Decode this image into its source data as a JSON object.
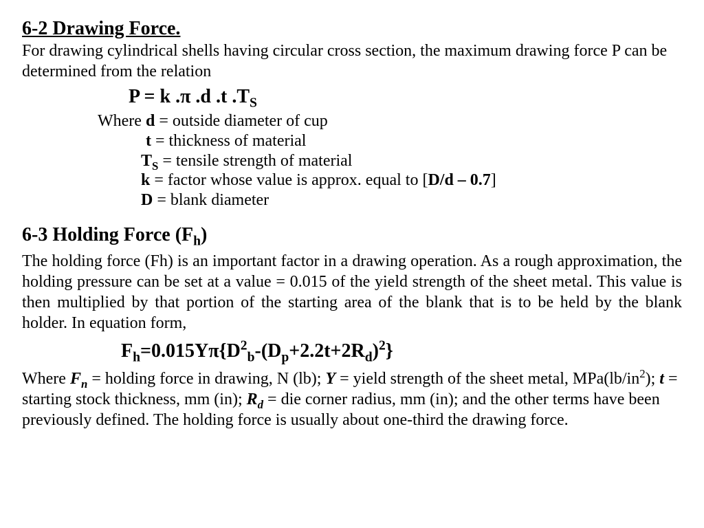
{
  "section62": {
    "title": "6-2 Drawing Force.",
    "intro": "For drawing cylindrical shells having circular cross section, the maximum drawing force P can be determined from the relation",
    "formula_html": "P = k .&pi; .d .t .T<sub>S</sub>",
    "where_label": "Where ",
    "d_var": "d",
    "d_def": " = outside diameter of cup",
    "t_var": "t",
    "t_def": " = thickness of material",
    "ts_var_html": "T<sub>S</sub>",
    "ts_def": " = tensile strength of material",
    "k_var": "k",
    "k_def_pre": " = factor whose value is approx. equal to [",
    "k_expr": "D/d – 0.7",
    "k_def_post": "]",
    "D_var": "D",
    "D_def": " = blank diameter"
  },
  "section63": {
    "title_html": "6-3 Holding Force (F<sub>h</sub>)",
    "intro": "The holding force (Fh) is an important factor in a drawing operation. As a rough approximation, the holding pressure can be set at a value = 0.015 of the yield strength of the sheet metal. This value is then multiplied by that portion of the starting area of the blank that is to be held by the blank holder. In equation form,",
    "formula_html": "F<sub>h</sub>=0.015Y&pi;{D<sup>2</sup><sub>b</sub>-(D<sub>p</sub>+2.2t+2R<sub>d</sub>)<sup>2</sup>}",
    "where_pre": "Where   ",
    "fn_var_html": "F<sub>n</sub>",
    "fn_def": " = holding force in drawing, N (lb);   ",
    "y_var": "Y",
    "y_def_html": " = yield strength of the sheet metal, MPa(lb/in<sup>2</sup>);    ",
    "t_var": "t",
    "t_def": " = starting stock thickness, mm (in);   ",
    "rd_var_html": "R<sub>d</sub>",
    "rd_def": " = die corner radius, mm (in); and the other terms have been previously defined. The holding force is usually about one-third the drawing force."
  }
}
